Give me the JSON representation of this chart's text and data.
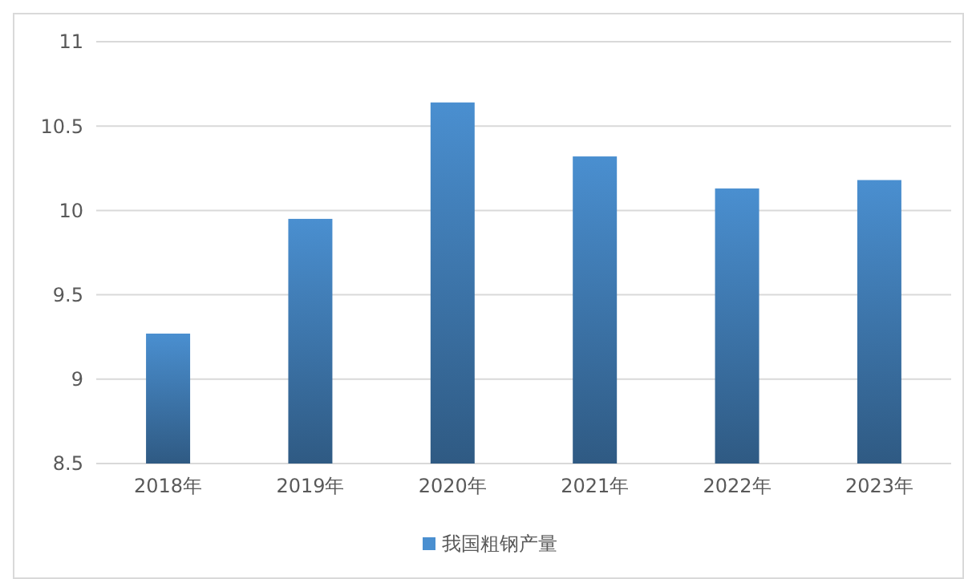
{
  "chart_data": {
    "type": "bar",
    "categories": [
      "2018年",
      "2019年",
      "2020年",
      "2021年",
      "2022年",
      "2023年"
    ],
    "series": [
      {
        "name": "我国粗钢产量",
        "color": "#4a8fd0",
        "values": [
          9.27,
          9.95,
          10.64,
          10.32,
          10.13,
          10.18
        ]
      }
    ],
    "ylim": [
      8.5,
      11
    ],
    "yticks": [
      8.5,
      9,
      9.5,
      10,
      10.5,
      11
    ],
    "grid": "y",
    "legend": "bottom"
  }
}
